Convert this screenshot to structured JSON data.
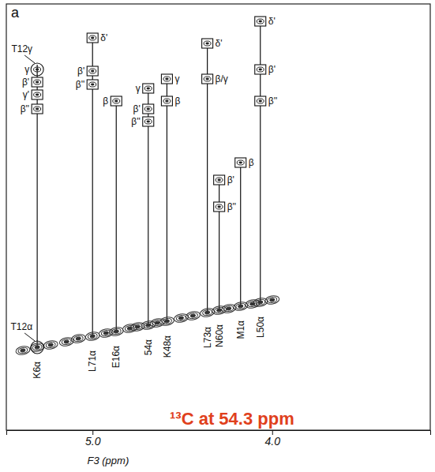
{
  "chart_data": {
    "type": "strip",
    "panel": "a",
    "x_label": "F3 (ppm)",
    "annotation": "¹³C at 54.3 ppm",
    "xlim": [
      5.48,
      3.12
    ],
    "xticks": [
      {
        "value": 5,
        "label": "5.0"
      },
      {
        "value": 4,
        "label": "4.0"
      }
    ],
    "ylim": [
      0,
      540
    ],
    "tick_labels": "x",
    "strips": [
      {
        "label": "K6α",
        "x": 5.308,
        "diagonal": 105,
        "peaks": [
          {
            "label": "γ",
            "y": 457
          },
          {
            "label": "β'",
            "y": 441
          },
          {
            "label": "γ'",
            "y": 425
          },
          {
            "label": "β''",
            "y": 407
          }
        ]
      },
      {
        "label": "L71α",
        "x": 5.0,
        "diagonal": 119,
        "peaks": [
          {
            "label": "δ'",
            "y": 497
          },
          {
            "label": "β'",
            "y": 455
          },
          {
            "label": "β''",
            "y": 438
          }
        ]
      },
      {
        "label": "E16α",
        "x": 4.868,
        "diagonal": 125,
        "peaks": [
          {
            "label": "β",
            "y": 417
          }
        ]
      },
      {
        "label": "54α",
        "x": 4.69,
        "diagonal": 133,
        "peaks": [
          {
            "label": "γ",
            "y": 433
          },
          {
            "label": "β'",
            "y": 407
          },
          {
            "label": "β''",
            "y": 391
          }
        ]
      },
      {
        "label": "K48α",
        "x": 4.586,
        "diagonal": 138,
        "peaks": [
          {
            "label": "γ",
            "y": 445
          },
          {
            "label": "β",
            "y": 417
          }
        ]
      },
      {
        "label": "L73α",
        "x": 4.361,
        "diagonal": 149,
        "peaks": [
          {
            "label": "δ'",
            "y": 490
          },
          {
            "label": "β/γ",
            "y": 445
          }
        ]
      },
      {
        "label": "N60α",
        "x": 4.295,
        "diagonal": 152,
        "peaks": [
          {
            "label": "β'",
            "y": 317
          },
          {
            "label": "β''",
            "y": 283
          }
        ]
      },
      {
        "label": "M1α",
        "x": 4.176,
        "diagonal": 157,
        "peaks": [
          {
            "label": "β",
            "y": 339
          }
        ]
      },
      {
        "label": "L50α",
        "x": 4.066,
        "diagonal": 162,
        "peaks": [
          {
            "label": "δ'",
            "y": 518
          },
          {
            "label": "β'",
            "y": 457
          },
          {
            "label": "β''",
            "y": 417
          }
        ]
      }
    ],
    "annotations": [
      {
        "text": "T12γ",
        "x": 5.308,
        "y": 457
      },
      {
        "text": "T12α",
        "x": 5.308,
        "y": 105
      }
    ],
    "diagonal": {
      "x": [
        5.388,
        5.233,
        5.145,
        5.079,
        4.925,
        4.793,
        4.749,
        4.639,
        4.507,
        4.441,
        4.242,
        4.11,
        4.0
      ],
      "y": [
        101,
        108,
        112,
        116,
        123,
        129,
        131,
        136,
        142,
        145,
        154,
        160,
        165
      ]
    }
  }
}
